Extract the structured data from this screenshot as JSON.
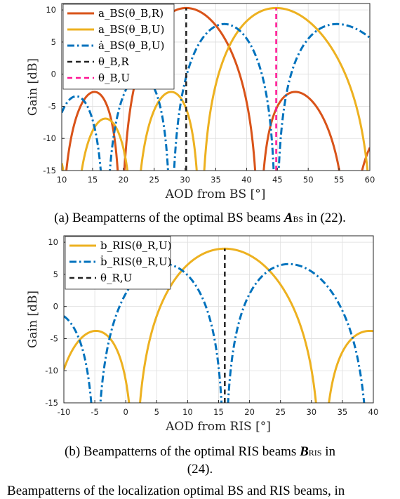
{
  "figure_caption_fragment": "Beampatterns of the localization optimal BS and RIS beams, in",
  "chart_data": [
    {
      "id": "a",
      "type": "line",
      "caption": "(a) Beampatterns of the optimal BS beams A_BS in (22).",
      "xlabel": "AOD from BS [°]",
      "ylabel": "Gain [dB]",
      "xlim": [
        10,
        60
      ],
      "ylim": [
        -15,
        11
      ],
      "xticks": [
        10,
        15,
        20,
        25,
        30,
        35,
        40,
        45,
        50,
        55,
        60
      ],
      "yticks": [
        10,
        5,
        0,
        -5,
        -10,
        -15
      ],
      "grid": true,
      "legend_position": "top-left",
      "series": [
        {
          "name": "a_BS(θ_B,R)",
          "color": "#D95319",
          "style": "solid",
          "width": 3,
          "model": {
            "kind": "array",
            "N": 12,
            "center": 30.2,
            "peak": 10.3,
            "d": 0.5
          }
        },
        {
          "name": "a_BS(θ_B,U)",
          "color": "#EDB120",
          "style": "solid",
          "width": 3,
          "model": {
            "kind": "array",
            "N": 12,
            "center": 44.8,
            "peak": 10.3,
            "d": 0.5
          }
        },
        {
          "name": "ȧ_BS(θ_B,U)",
          "color": "#0072BD",
          "style": "dashdot",
          "width": 3,
          "model": {
            "kind": "derivative",
            "N": 12,
            "center": 44.8,
            "peak": 7.8,
            "d": 0.5
          }
        },
        {
          "name": "θ_B,R",
          "color": "#222222",
          "style": "dashed",
          "width": 2.5,
          "vline": {
            "x": 30.2,
            "y": 10.3
          }
        },
        {
          "name": "θ_B,U",
          "color": "#FF1493",
          "style": "dashed",
          "width": 2.5,
          "vline": {
            "x": 44.8,
            "y": 10.3
          }
        }
      ]
    },
    {
      "id": "b",
      "type": "line",
      "caption": "(b) Beampatterns of the optimal RIS beams B_RIS in (24).",
      "xlabel": "AOD from RIS [°]",
      "ylabel": "Gain [dB]",
      "xlim": [
        -10,
        40
      ],
      "ylim": [
        -15,
        11
      ],
      "xticks": [
        -10,
        -5,
        0,
        5,
        10,
        15,
        20,
        25,
        30,
        35,
        40
      ],
      "yticks": [
        10,
        5,
        0,
        -5,
        -10,
        -15
      ],
      "grid": true,
      "legend_position": "top-left",
      "series": [
        {
          "name": "b_RIS(θ_R,U)",
          "color": "#EDB120",
          "style": "solid",
          "width": 3,
          "model": {
            "kind": "array",
            "N": 8,
            "center": 16.0,
            "peak": 9.0,
            "d": 0.5
          }
        },
        {
          "name": "ḃ_RIS(θ_R,U)",
          "color": "#0072BD",
          "style": "dashdot",
          "width": 3,
          "model": {
            "kind": "derivative",
            "N": 8,
            "center": 16.0,
            "peak": 6.6,
            "d": 0.5
          }
        },
        {
          "name": "θ_R,U",
          "color": "#222222",
          "style": "dashed",
          "width": 2.5,
          "vline": {
            "x": 16.0,
            "y": 9.0
          }
        }
      ]
    }
  ]
}
